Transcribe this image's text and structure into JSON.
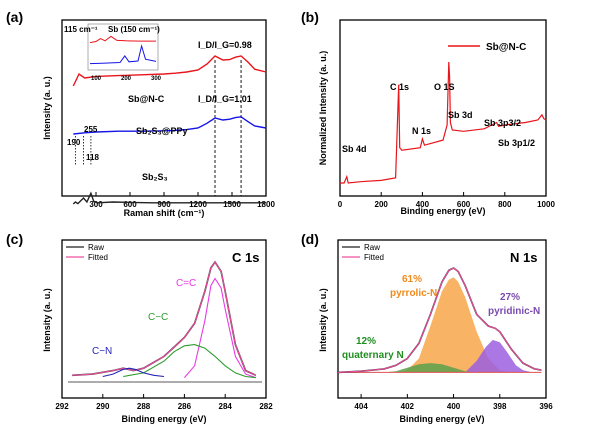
{
  "colors": {
    "red": "#e8151b",
    "blue": "#1515e6",
    "black": "#222222",
    "pink": "#f14fa0",
    "magenta": "#e83ae8",
    "green": "#2f9b2f",
    "navy": "#2424b8",
    "orange": "#f7a64a",
    "purple": "#9b5fe0",
    "n_red": "#e05050",
    "n_green": "#5aa04a",
    "label_orange": "#f08a1c",
    "label_purple": "#7b4bb0",
    "label_green": "#1f8f1f"
  },
  "chart_data": [
    {
      "panel": "(a)",
      "type": "line",
      "xlabel": "Raman shift (cm⁻¹)",
      "ylabel": "Intensity (a. u.)",
      "xlim": [
        0,
        1800
      ],
      "xticks": [
        "300",
        "600",
        "900",
        "1200",
        "1500",
        "1800"
      ],
      "dashed_lines_x": [
        1350,
        1580
      ],
      "series": [
        {
          "name": "Sb@N-C",
          "color_key": "red",
          "x": [
            100,
            150,
            200,
            300,
            500,
            700,
            900,
            1000,
            1100,
            1200,
            1280,
            1350,
            1420,
            1480,
            1530,
            1580,
            1640,
            1700,
            1800
          ],
          "y": [
            0.4,
            0.7,
            0.6,
            0.64,
            0.66,
            0.68,
            0.7,
            0.72,
            0.75,
            0.8,
            0.95,
            1.15,
            1.05,
            1.06,
            1.12,
            1.15,
            1.0,
            0.82,
            0.75
          ]
        },
        {
          "name": "Sb₂S₃@PPy",
          "color_key": "blue",
          "x": [
            100,
            200,
            300,
            500,
            700,
            900,
            1000,
            1100,
            1200,
            1280,
            1350,
            1420,
            1480,
            1530,
            1580,
            1640,
            1700,
            1800
          ],
          "y": [
            0.35,
            0.38,
            0.4,
            0.42,
            0.42,
            0.43,
            0.44,
            0.46,
            0.5,
            0.62,
            0.75,
            0.7,
            0.72,
            0.76,
            0.78,
            0.66,
            0.55,
            0.5
          ]
        },
        {
          "name": "Sb₂S₃",
          "color_key": "black",
          "x": [
            100,
            118,
            140,
            190,
            220,
            255,
            280,
            310,
            450,
            600,
            800,
            1000,
            1200,
            1400,
            1600,
            1800
          ],
          "y": [
            0.05,
            0.1,
            0.06,
            0.2,
            0.1,
            0.32,
            0.12,
            0.08,
            0.1,
            0.09,
            0.08,
            0.08,
            0.08,
            0.08,
            0.08,
            0.08
          ]
        }
      ],
      "annotations": {
        "id_ig_1": "I_D/I_G=0.98",
        "id_ig_2": "I_D/I_G=1.01",
        "label_snc": "Sb@N-C",
        "label_ppy": "Sb₂S₃@PPy",
        "label_sbs": "Sb₂S₃",
        "peak_255": "255",
        "peak_190": "190",
        "peak_118": "118",
        "inset_115": "115 cm⁻¹",
        "inset_sb": "Sb (150 cm⁻¹)"
      },
      "inset": {
        "xticks": [
          "100",
          "200",
          "300"
        ],
        "red": {
          "x": [
            80,
            100,
            115,
            130,
            150,
            170,
            200,
            250,
            300
          ],
          "y": [
            0.7,
            0.75,
            0.88,
            0.78,
            0.98,
            0.8,
            0.78,
            0.77,
            0.77
          ]
        },
        "blue": {
          "x": [
            80,
            120,
            180,
            196,
            210,
            240,
            252,
            265,
            300
          ],
          "y": [
            0.2,
            0.22,
            0.25,
            0.55,
            0.28,
            0.32,
            1.0,
            0.4,
            0.3
          ]
        }
      }
    },
    {
      "panel": "(b)",
      "type": "line",
      "xlabel": "Binding energy (eV)",
      "ylabel": "Normalized Intensity (a. u.)",
      "xlim": [
        0,
        1000
      ],
      "xticks": [
        "0",
        "200",
        "400",
        "600",
        "800",
        "1000"
      ],
      "legend": "Sb@N-C",
      "series": [
        {
          "name": "Sb@N-C",
          "color_key": "red",
          "x": [
            0,
            20,
            33,
            40,
            100,
            200,
            270,
            285,
            290,
            300,
            390,
            400,
            410,
            500,
            520,
            528,
            532,
            536,
            545,
            600,
            700,
            760,
            770,
            800,
            900,
            960,
            980,
            990,
            1000
          ],
          "y": [
            0.04,
            0.04,
            0.09,
            0.04,
            0.05,
            0.06,
            0.08,
            0.82,
            0.32,
            0.3,
            0.32,
            0.39,
            0.34,
            0.38,
            0.5,
            1.0,
            0.88,
            0.52,
            0.46,
            0.45,
            0.47,
            0.52,
            0.49,
            0.5,
            0.52,
            0.54,
            0.58,
            0.55,
            0.54
          ]
        }
      ],
      "annotations": {
        "sb4d": "Sb 4d",
        "c1s": "C 1s",
        "n1s": "N 1s",
        "sb3d": "Sb 3d",
        "o1s": "O 1S",
        "sb3p32": "Sb 3p3/2",
        "sb3p12": "Sb 3p1/2"
      }
    },
    {
      "panel": "(c)",
      "type": "line",
      "xlabel": "Binding energy (eV)",
      "ylabel": "Intensity (a. u.)",
      "xlim": [
        292,
        282
      ],
      "xticks": [
        "292",
        "290",
        "288",
        "286",
        "284",
        "282"
      ],
      "title": "C 1s",
      "legend": [
        "Raw",
        "Fitted"
      ],
      "series": [
        {
          "name": "Raw",
          "color_key": "black",
          "x": [
            291.5,
            290.5,
            289.5,
            289,
            288.5,
            288,
            287.5,
            287,
            286.5,
            286,
            285.5,
            285,
            284.7,
            284.5,
            284.2,
            284,
            283.5,
            283,
            282.5
          ],
          "y": [
            0.04,
            0.05,
            0.08,
            0.1,
            0.08,
            0.1,
            0.15,
            0.2,
            0.28,
            0.36,
            0.48,
            0.75,
            0.95,
            1.0,
            0.92,
            0.75,
            0.3,
            0.08,
            0.04
          ]
        },
        {
          "name": "Fitted",
          "color_key": "pink",
          "x": [
            291.5,
            290.5,
            289.5,
            289,
            288.5,
            288,
            287.5,
            287,
            286.5,
            286,
            285.5,
            285,
            284.7,
            284.5,
            284.2,
            284,
            283.5,
            283,
            282.5
          ],
          "y": [
            0.04,
            0.05,
            0.08,
            0.1,
            0.08,
            0.1,
            0.15,
            0.2,
            0.28,
            0.36,
            0.48,
            0.75,
            0.95,
            1.0,
            0.92,
            0.75,
            0.3,
            0.08,
            0.04
          ]
        },
        {
          "name": "C=C",
          "color_key": "magenta",
          "x": [
            286,
            285.5,
            285,
            284.7,
            284.5,
            284.2,
            284,
            283.5,
            283,
            282.5
          ],
          "y": [
            0.02,
            0.12,
            0.5,
            0.8,
            0.86,
            0.78,
            0.6,
            0.2,
            0.05,
            0.02
          ]
        },
        {
          "name": "C-C",
          "color_key": "green",
          "x": [
            289,
            288,
            287,
            286.5,
            286,
            285.5,
            285,
            284.5,
            284,
            283.5,
            283,
            282.5
          ],
          "y": [
            0.03,
            0.06,
            0.16,
            0.24,
            0.29,
            0.3,
            0.27,
            0.2,
            0.12,
            0.06,
            0.03,
            0.02
          ]
        },
        {
          "name": "C-N",
          "color_key": "navy",
          "x": [
            290,
            289.5,
            289,
            288.7,
            288.4,
            288,
            287.5,
            287
          ],
          "y": [
            0.03,
            0.05,
            0.09,
            0.1,
            0.09,
            0.06,
            0.04,
            0.03
          ]
        }
      ],
      "annotations": {
        "cc_double": "C=C",
        "cc_single": "C−C",
        "cn": "C−N"
      }
    },
    {
      "panel": "(d)",
      "type": "area",
      "xlabel": "Binding energy (eV)",
      "ylabel": "Intensity (a. u.)",
      "xlim": [
        405,
        396
      ],
      "xticks": [
        "404",
        "402",
        "400",
        "398",
        "396"
      ],
      "title": "N 1s",
      "legend": [
        "Raw",
        "Fitted"
      ],
      "series": [
        {
          "name": "Raw",
          "color_key": "black",
          "x": [
            405,
            404,
            403,
            402.5,
            402,
            401.5,
            401,
            400.5,
            400.2,
            400,
            399.8,
            399.5,
            399,
            398.5,
            398.2,
            398,
            397.5,
            397,
            396.5,
            396.2
          ],
          "y": [
            0.1,
            0.11,
            0.13,
            0.16,
            0.22,
            0.35,
            0.6,
            0.88,
            0.98,
            1.0,
            0.97,
            0.85,
            0.6,
            0.5,
            0.48,
            0.45,
            0.3,
            0.18,
            0.13,
            0.12
          ]
        },
        {
          "name": "Fitted",
          "color_key": "pink",
          "x": [
            405,
            404,
            403,
            402.5,
            402,
            401.5,
            401,
            400.5,
            400.2,
            400,
            399.8,
            399.5,
            399,
            398.5,
            398.2,
            398,
            397.5,
            397,
            396.5,
            396.2
          ],
          "y": [
            0.1,
            0.11,
            0.13,
            0.16,
            0.22,
            0.35,
            0.6,
            0.88,
            0.98,
            1.0,
            0.97,
            0.85,
            0.6,
            0.5,
            0.48,
            0.45,
            0.3,
            0.18,
            0.13,
            0.12
          ]
        },
        {
          "name": "pyrrolic-N",
          "color_key": "orange",
          "x": [
            402.5,
            402,
            401.5,
            401,
            400.5,
            400.2,
            400,
            399.8,
            399.5,
            399,
            398.5,
            398,
            397.5
          ],
          "y": [
            0.1,
            0.12,
            0.22,
            0.5,
            0.8,
            0.9,
            0.92,
            0.88,
            0.75,
            0.45,
            0.22,
            0.12,
            0.1
          ]
        },
        {
          "name": "pyridinic-N",
          "color_key": "purple",
          "x": [
            399.5,
            399,
            398.6,
            398.3,
            398,
            397.7,
            397.3,
            397,
            396.6
          ],
          "y": [
            0.1,
            0.2,
            0.32,
            0.38,
            0.36,
            0.28,
            0.16,
            0.12,
            0.1
          ]
        },
        {
          "name": "quaternary N",
          "color_key": "n_green",
          "x": [
            403,
            402.5,
            402,
            401.5,
            401,
            400.5,
            400,
            399.5,
            399
          ],
          "y": [
            0.1,
            0.11,
            0.14,
            0.17,
            0.18,
            0.17,
            0.14,
            0.11,
            0.1
          ]
        }
      ],
      "annotations": {
        "pct_pyrrolic": "61%",
        "pyrrolic": "pyrrolic-N",
        "pct_pyridinic": "27%",
        "pyridinic": "pyridinic-N",
        "pct_quaternary": "12%",
        "quaternary": "quaternary N"
      }
    }
  ]
}
